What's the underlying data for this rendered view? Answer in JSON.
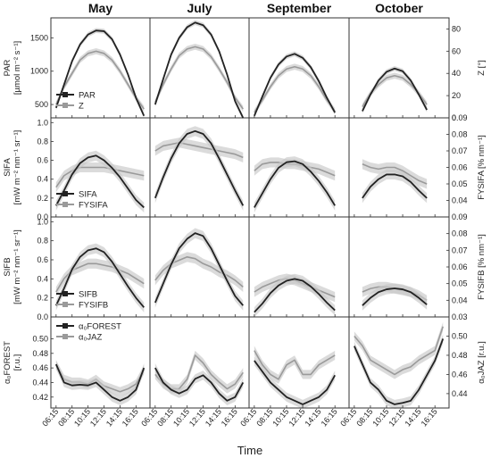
{
  "chart_data": {
    "type": "line",
    "months": [
      "May",
      "July",
      "September",
      "October"
    ],
    "xlabel": "Time",
    "x_ticks": [
      "06:15",
      "08:15",
      "10:15",
      "12:15",
      "14:15",
      "16:15"
    ],
    "dark_color": "#222222",
    "light_color": "#9a9a9a",
    "band_color": "#c8c8c8",
    "rows": [
      {
        "id": "par",
        "left_label": [
          "PAR",
          "[µmol m⁻² s⁻¹]"
        ],
        "right_label": "Z [°]",
        "ylim_left": [
          300,
          1800
        ],
        "yticks_left": [
          500,
          1000,
          1500
        ],
        "ylim_right": [
          0,
          90
        ],
        "yticks_right": [
          0,
          20,
          40,
          60,
          80
        ],
        "legend": [
          "PAR",
          "Z"
        ],
        "legend_pos": "bottom-left of first panel",
        "series_dark": {
          "name": "PAR",
          "axis": "left",
          "x": [
            6.25,
            7.25,
            8.25,
            9.25,
            10.25,
            11.25,
            12.25,
            13.25,
            14.25,
            15.25,
            16.25,
            17.25
          ],
          "May": [
            450,
            800,
            1150,
            1400,
            1550,
            1610,
            1600,
            1480,
            1250,
            950,
            600,
            330
          ],
          "July": [
            500,
            880,
            1250,
            1500,
            1660,
            1730,
            1690,
            1550,
            1300,
            950,
            550,
            300
          ],
          "September": [
            330,
            620,
            900,
            1100,
            1220,
            1260,
            1200,
            1060,
            850,
            600,
            380
          ],
          "October": [
            null,
            400,
            650,
            860,
            990,
            1040,
            1000,
            860,
            650,
            420
          ]
        },
        "series_light": {
          "name": "Z",
          "axis": "right",
          "x": [
            6.25,
            7.25,
            8.25,
            9.25,
            10.25,
            11.25,
            12.25,
            13.25,
            14.25,
            15.25,
            16.25,
            17.25
          ],
          "May": [
            12,
            28,
            40,
            52,
            58,
            60,
            58,
            52,
            42,
            30,
            18,
            8
          ],
          "July": [
            14,
            30,
            44,
            56,
            62,
            64,
            62,
            55,
            44,
            32,
            18,
            8
          ],
          "September": [
            5,
            16,
            28,
            38,
            44,
            46,
            44,
            38,
            28,
            16,
            6
          ],
          "October": [
            null,
            10,
            22,
            30,
            36,
            38,
            36,
            30,
            22,
            12
          ]
        }
      },
      {
        "id": "sifa",
        "left_label": [
          "SIFA",
          "[mW m⁻² nm⁻¹ sr⁻¹]"
        ],
        "right_label": "FYSIFA [% nm⁻¹]",
        "ylim_left": [
          0,
          1.05
        ],
        "yticks_left": [
          0.0,
          0.2,
          0.4,
          0.6,
          0.8,
          1.0
        ],
        "ylim_right": [
          0.03,
          0.09
        ],
        "yticks_right": [
          0.04,
          0.05,
          0.06,
          0.07,
          0.08,
          0.09
        ],
        "legend": [
          "SIFA",
          "FYSIFA"
        ],
        "legend_pos": "bottom-left of first panel",
        "series_dark": {
          "name": "SIFA",
          "axis": "left",
          "x": [
            6.25,
            7.25,
            8.25,
            9.25,
            10.25,
            11.25,
            12.25,
            13.25,
            14.25,
            15.25,
            16.25,
            17.25
          ],
          "May": [
            0.12,
            0.28,
            0.45,
            0.57,
            0.63,
            0.65,
            0.6,
            0.52,
            0.42,
            0.3,
            0.18,
            0.1
          ],
          "July": [
            0.2,
            0.42,
            0.62,
            0.78,
            0.88,
            0.91,
            0.88,
            0.78,
            0.62,
            0.45,
            0.28,
            0.12
          ],
          "September": [
            0.1,
            0.25,
            0.4,
            0.52,
            0.58,
            0.59,
            0.56,
            0.48,
            0.38,
            0.26,
            0.12
          ],
          "October": [
            null,
            0.2,
            0.32,
            0.4,
            0.45,
            0.45,
            0.43,
            0.37,
            0.28,
            0.2
          ]
        },
        "series_light": {
          "name": "FYSIFA",
          "axis": "right",
          "x": [
            6.25,
            7.25,
            8.25,
            9.25,
            10.25,
            11.25,
            12.25,
            13.25,
            14.25,
            15.25,
            16.25,
            17.25
          ],
          "May": [
            0.048,
            0.055,
            0.058,
            0.06,
            0.06,
            0.06,
            0.06,
            0.059,
            0.058,
            0.057,
            0.056,
            0.055
          ],
          "July": [
            0.07,
            0.073,
            0.074,
            0.075,
            0.074,
            0.073,
            0.072,
            0.071,
            0.07,
            0.069,
            0.068,
            0.066
          ],
          "September": [
            0.058,
            0.062,
            0.063,
            0.063,
            0.062,
            0.062,
            0.061,
            0.06,
            0.059,
            0.057,
            0.055
          ],
          "October": [
            null,
            0.062,
            0.06,
            0.059,
            0.06,
            0.06,
            0.058,
            0.055,
            0.052,
            0.05
          ]
        }
      },
      {
        "id": "sifb",
        "left_label": [
          "SIFB",
          "[mW m⁻² nm⁻¹ sr⁻¹]"
        ],
        "right_label": "FYSIFB [% nm⁻¹]",
        "ylim_left": [
          0,
          1.05
        ],
        "yticks_left": [
          0.0,
          0.2,
          0.4,
          0.6,
          0.8,
          1.0
        ],
        "ylim_right": [
          0.03,
          0.09
        ],
        "yticks_right": [
          0.03,
          0.04,
          0.05,
          0.06,
          0.07,
          0.08,
          0.09
        ],
        "legend": [
          "SIFB",
          "FYSIFB"
        ],
        "legend_pos": "bottom-left of first panel",
        "series_dark": {
          "name": "SIFB",
          "axis": "left",
          "x": [
            6.25,
            7.25,
            8.25,
            9.25,
            10.25,
            11.25,
            12.25,
            13.25,
            14.25,
            15.25,
            16.25,
            17.25
          ],
          "May": [
            0.12,
            0.3,
            0.5,
            0.63,
            0.7,
            0.72,
            0.68,
            0.58,
            0.45,
            0.32,
            0.2,
            0.1
          ],
          "July": [
            0.15,
            0.35,
            0.55,
            0.72,
            0.82,
            0.88,
            0.85,
            0.72,
            0.55,
            0.38,
            0.22,
            0.12
          ],
          "September": [
            0.05,
            0.14,
            0.25,
            0.33,
            0.38,
            0.4,
            0.38,
            0.32,
            0.24,
            0.15,
            0.07
          ],
          "October": [
            null,
            0.12,
            0.2,
            0.26,
            0.29,
            0.3,
            0.29,
            0.26,
            0.2,
            0.13
          ]
        },
        "series_light": {
          "name": "FYSIFB",
          "axis": "right",
          "x": [
            6.25,
            7.25,
            8.25,
            9.25,
            10.25,
            11.25,
            12.25,
            13.25,
            14.25,
            15.25,
            16.25,
            17.25
          ],
          "May": [
            0.045,
            0.053,
            0.058,
            0.06,
            0.062,
            0.062,
            0.061,
            0.06,
            0.058,
            0.056,
            0.053,
            0.05
          ],
          "July": [
            0.052,
            0.058,
            0.062,
            0.064,
            0.066,
            0.065,
            0.062,
            0.06,
            0.057,
            0.055,
            0.052,
            0.048
          ],
          "September": [
            0.045,
            0.048,
            0.05,
            0.052,
            0.053,
            0.052,
            0.05,
            0.048,
            0.046,
            0.044,
            0.042
          ],
          "October": [
            null,
            0.045,
            0.047,
            0.048,
            0.048,
            0.047,
            0.046,
            0.045,
            0.043,
            0.04
          ]
        }
      },
      {
        "id": "alpha",
        "left_label": [
          "α₀FOREST",
          "[r.u.]"
        ],
        "right_label": "α₀JAZ [r.u.]",
        "ylim_left": [
          0.405,
          0.53
        ],
        "yticks_left": [
          0.42,
          0.44,
          0.46,
          0.48,
          0.5
        ],
        "ylim_right": [
          0.425,
          0.52
        ],
        "yticks_right": [
          0.44,
          0.46,
          0.48,
          0.5
        ],
        "legend": [
          "α₀FOREST",
          "α₀JAZ"
        ],
        "legend_pos": "top-left of first panel",
        "series_dark": {
          "name": "α₀FOREST",
          "axis": "left",
          "x": [
            6.25,
            7.25,
            8.25,
            9.25,
            10.25,
            11.25,
            12.25,
            13.25,
            14.25,
            15.25,
            16.25,
            17.25
          ],
          "May": [
            0.465,
            0.44,
            0.436,
            0.437,
            0.436,
            0.44,
            0.43,
            0.42,
            0.415,
            0.42,
            0.43,
            0.46
          ],
          "July": [
            0.46,
            0.44,
            0.43,
            0.425,
            0.43,
            0.445,
            0.45,
            0.44,
            0.425,
            0.415,
            0.42,
            0.44
          ],
          "September": [
            0.47,
            0.455,
            0.44,
            0.43,
            0.42,
            0.415,
            0.41,
            0.415,
            0.42,
            0.43,
            0.45
          ],
          "October": [
            0.49,
            0.465,
            0.44,
            0.43,
            0.415,
            0.41,
            0.412,
            0.415,
            0.43,
            0.45,
            0.47,
            0.5
          ]
        },
        "series_light": {
          "name": "α₀JAZ",
          "axis": "right",
          "x": [
            6.25,
            7.25,
            8.25,
            9.25,
            10.25,
            11.25,
            12.25,
            13.25,
            14.25,
            15.25,
            16.25,
            17.25
          ],
          "May": [
            0.47,
            0.455,
            0.452,
            0.452,
            0.45,
            0.455,
            0.448,
            0.445,
            0.442,
            0.445,
            0.45,
            0.465
          ],
          "July": [
            0.46,
            0.45,
            0.445,
            0.445,
            0.455,
            0.48,
            0.472,
            0.46,
            0.452,
            0.445,
            0.45,
            0.462
          ],
          "September": [
            0.485,
            0.47,
            0.46,
            0.455,
            0.47,
            0.475,
            0.46,
            0.46,
            0.47,
            0.475,
            0.48
          ],
          "October": [
            0.5,
            0.49,
            0.475,
            0.47,
            0.465,
            0.46,
            0.465,
            0.468,
            0.475,
            0.48,
            0.485,
            0.51
          ]
        }
      }
    ]
  }
}
